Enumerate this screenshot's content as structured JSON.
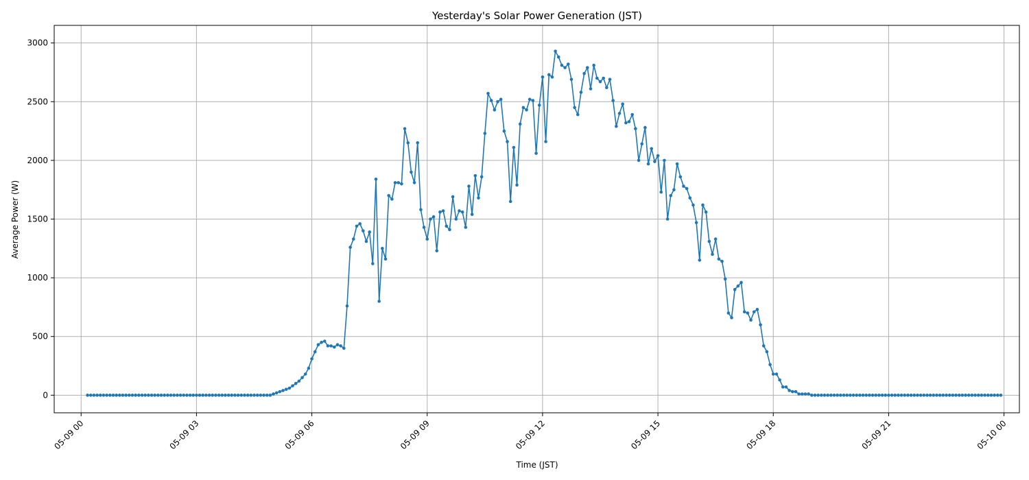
{
  "chart_data": {
    "type": "line",
    "title": "Yesterday's Solar Power Generation (JST)",
    "xlabel": "Time (JST)",
    "ylabel": "Average Power (W)",
    "grid": true,
    "marker": "circle",
    "colors": {
      "series": "#1f77b4",
      "grid": "#b0b0b0",
      "axis": "#000000"
    },
    "ylim": [
      -150,
      3150
    ],
    "xlim_hours": [
      -0.7,
      24.4
    ],
    "x_ticks": [
      {
        "hour": 0,
        "label": "05-09 00"
      },
      {
        "hour": 3,
        "label": "05-09 03"
      },
      {
        "hour": 6,
        "label": "05-09 06"
      },
      {
        "hour": 9,
        "label": "05-09 09"
      },
      {
        "hour": 12,
        "label": "05-09 12"
      },
      {
        "hour": 15,
        "label": "05-09 15"
      },
      {
        "hour": 18,
        "label": "05-09 18"
      },
      {
        "hour": 21,
        "label": "05-09 21"
      },
      {
        "hour": 24,
        "label": "05-10 00"
      }
    ],
    "y_ticks": [
      0,
      500,
      1000,
      1500,
      2000,
      2500,
      3000
    ],
    "series": [
      {
        "start_hour": 0.1667,
        "step_minutes": 5,
        "values": [
          0,
          0,
          0,
          0,
          0,
          0,
          0,
          0,
          0,
          0,
          0,
          0,
          0,
          0,
          0,
          0,
          0,
          0,
          0,
          0,
          0,
          0,
          0,
          0,
          0,
          0,
          0,
          0,
          0,
          0,
          0,
          0,
          0,
          0,
          0,
          0,
          0,
          0,
          0,
          0,
          0,
          0,
          0,
          0,
          0,
          0,
          0,
          0,
          0,
          0,
          0,
          0,
          0,
          0,
          0,
          0,
          0,
          0,
          10,
          20,
          30,
          40,
          50,
          60,
          80,
          100,
          120,
          150,
          180,
          230,
          310,
          370,
          430,
          450,
          460,
          420,
          420,
          410,
          430,
          420,
          400,
          760,
          1260,
          1330,
          1440,
          1460,
          1400,
          1310,
          1390,
          1120,
          1840,
          800,
          1250,
          1160,
          1700,
          1670,
          1810,
          1810,
          1800,
          2270,
          2150,
          1900,
          1810,
          2150,
          1580,
          1430,
          1330,
          1500,
          1520,
          1230,
          1560,
          1570,
          1440,
          1410,
          1690,
          1500,
          1570,
          1560,
          1430,
          1780,
          1540,
          1870,
          1680,
          1860,
          2230,
          2570,
          2510,
          2430,
          2500,
          2520,
          2250,
          2160,
          1650,
          2110,
          1790,
          2310,
          2450,
          2430,
          2520,
          2510,
          2060,
          2470,
          2710,
          2160,
          2730,
          2710,
          2930,
          2880,
          2810,
          2790,
          2820,
          2690,
          2450,
          2390,
          2580,
          2740,
          2790,
          2610,
          2810,
          2700,
          2670,
          2700,
          2620,
          2690,
          2510,
          2290,
          2400,
          2480,
          2320,
          2330,
          2390,
          2270,
          2000,
          2140,
          2280,
          1970,
          2100,
          1990,
          2040,
          1730,
          2000,
          1500,
          1700,
          1750,
          1970,
          1860,
          1780,
          1760,
          1680,
          1620,
          1470,
          1150,
          1620,
          1560,
          1310,
          1200,
          1330,
          1160,
          1140,
          990,
          700,
          660,
          900,
          930,
          960,
          710,
          700,
          640,
          710,
          730,
          600,
          420,
          370,
          260,
          180,
          180,
          130,
          70,
          70,
          40,
          30,
          30,
          10,
          10,
          10,
          10,
          0,
          0,
          0,
          0,
          0,
          0,
          0,
          0,
          0,
          0,
          0,
          0,
          0,
          0,
          0,
          0,
          0,
          0,
          0,
          0,
          0,
          0,
          0,
          0,
          0,
          0,
          0,
          0,
          0,
          0,
          0,
          0,
          0,
          0,
          0,
          0,
          0,
          0,
          0,
          0,
          0,
          0,
          0,
          0,
          0,
          0,
          0,
          0,
          0,
          0,
          0,
          0,
          0,
          0,
          0,
          0,
          0,
          0,
          0,
          0
        ]
      }
    ]
  }
}
